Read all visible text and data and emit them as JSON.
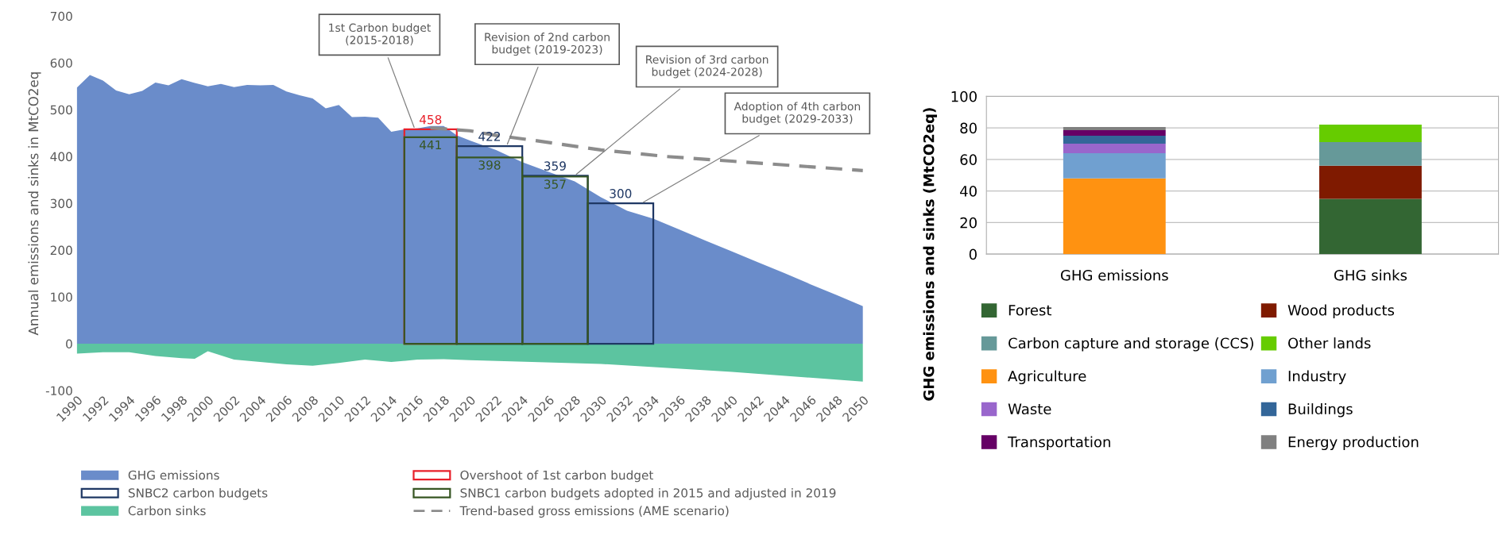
{
  "chart_data": [
    {
      "type": "area",
      "ylabel": "Annual emissions and sinks in MtCO2eq",
      "xlim": [
        1990,
        2050
      ],
      "ylim": [
        -100,
        700
      ],
      "xticks": [
        1990,
        1992,
        1994,
        1996,
        1998,
        2000,
        2002,
        2004,
        2006,
        2008,
        2010,
        2012,
        2014,
        2016,
        2018,
        2020,
        2022,
        2024,
        2026,
        2028,
        2030,
        2032,
        2034,
        2036,
        2038,
        2040,
        2042,
        2044,
        2046,
        2048,
        2050
      ],
      "yticks": [
        -100,
        0,
        100,
        200,
        300,
        400,
        500,
        600,
        700
      ],
      "grid": false,
      "legend": "bottom",
      "series": [
        {
          "name": "GHG emissions",
          "type": "area",
          "color": "#6a8cca",
          "x": [
            1990,
            1991,
            1992,
            1993,
            1994,
            1995,
            1996,
            1997,
            1998,
            1999,
            2000,
            2001,
            2002,
            2003,
            2004,
            2005,
            2006,
            2007,
            2008,
            2009,
            2010,
            2011,
            2012,
            2013,
            2014,
            2015,
            2016,
            2017,
            2018,
            2019,
            2020,
            2022,
            2024,
            2026,
            2028,
            2030,
            2032,
            2034,
            2036,
            2038,
            2040,
            2042,
            2044,
            2046,
            2048,
            2050
          ],
          "values": [
            547,
            574,
            562,
            541,
            533,
            540,
            558,
            552,
            565,
            557,
            550,
            555,
            548,
            553,
            552,
            553,
            539,
            531,
            524,
            503,
            510,
            484,
            485,
            483,
            453,
            458,
            460,
            465,
            465,
            445,
            434,
            414,
            388,
            367,
            347,
            313,
            284,
            267,
            244,
            220,
            197,
            174,
            151,
            127,
            104,
            80
          ]
        },
        {
          "name": "SNBC2 carbon budgets",
          "type": "histogram",
          "color": "#1f3864",
          "bins": [
            2019,
            2024,
            2029,
            2034
          ],
          "values": [
            422,
            359,
            300
          ],
          "value_labels": [
            "422",
            "359",
            "300"
          ]
        },
        {
          "name": "Carbon sinks",
          "type": "area",
          "color": "#5cc4a0",
          "x": [
            1990,
            1992,
            1994,
            1996,
            1998,
            1999,
            2000,
            2002,
            2004,
            2006,
            2008,
            2010,
            2012,
            2014,
            2016,
            2018,
            2020,
            2030,
            2040,
            2050
          ],
          "values": [
            -21,
            -18,
            -18,
            -26,
            -31,
            -32,
            -16,
            -34,
            -39,
            -44,
            -47,
            -41,
            -34,
            -39,
            -34,
            -33,
            -35,
            -43,
            -60,
            -81
          ]
        },
        {
          "name": "Overshoot of 1st carbon budget",
          "type": "histogram",
          "color": "#e8202a",
          "bins": [
            2015,
            2019
          ],
          "values": [
            458
          ],
          "value_labels": [
            "458"
          ]
        },
        {
          "name": "SNBC1 carbon budgets adopted in 2015 and adjusted in 2019",
          "type": "histogram",
          "color": "#375623",
          "bins": [
            2015,
            2019,
            2024,
            2029
          ],
          "values": [
            441,
            398,
            357
          ],
          "value_labels": [
            "441",
            "398",
            "357"
          ]
        },
        {
          "name": "Trend-based gross emissions (AME scenario)",
          "type": "line",
          "color": "#8c8c8c",
          "line_style": "dashed",
          "x": [
            2017,
            2020,
            2022,
            2025,
            2030,
            2035,
            2040,
            2045,
            2050
          ],
          "values": [
            461,
            455,
            445,
            434,
            414,
            400,
            390,
            380,
            370
          ]
        }
      ],
      "annotations": [
        {
          "text": "1st Carbon budget\n(2015-2018)",
          "x": 2015.8,
          "y": 458
        },
        {
          "text": "Revision of 2nd carbon\nbudget (2019-2023)",
          "x": 2022.8,
          "y": 422
        },
        {
          "text": "Revision of 3rd carbon\nbudget (2024-2028)",
          "x": 2028,
          "y": 359
        },
        {
          "text": "Adoption of 4th carbon\nbudget (2029-2033)",
          "x": 2033.1,
          "y": 300
        }
      ]
    },
    {
      "type": "bar",
      "stacked": true,
      "categories": [
        "GHG emissions",
        "GHG sinks"
      ],
      "ylabel": "GHG emissions and sinks (MtCO2eq)",
      "ylim": [
        0,
        100
      ],
      "yticks": [
        0,
        20,
        40,
        60,
        80,
        100
      ],
      "grid": "y",
      "legend": "bottom",
      "series": [
        {
          "name": "Forest",
          "color": "#336633",
          "values": [
            null,
            35
          ]
        },
        {
          "name": "Wood products",
          "color": "#7f1a00",
          "values": [
            null,
            21
          ]
        },
        {
          "name": "Carbon capture and storage (CCS)",
          "color": "#669999",
          "values": [
            null,
            15
          ]
        },
        {
          "name": "Other lands",
          "color": "#66cc00",
          "values": [
            null,
            11
          ]
        },
        {
          "name": "Agriculture",
          "color": "#ff9211",
          "values": [
            48,
            null
          ]
        },
        {
          "name": "Industry",
          "color": "#70a0d0",
          "values": [
            16,
            null
          ]
        },
        {
          "name": "Waste",
          "color": "#9966cc",
          "values": [
            6,
            null
          ]
        },
        {
          "name": "Buildings",
          "color": "#336699",
          "values": [
            5,
            null
          ]
        },
        {
          "name": "Transportation",
          "color": "#660066",
          "values": [
            3.5,
            null
          ]
        },
        {
          "name": "Energy production",
          "color": "#808080",
          "values": [
            2,
            null
          ]
        }
      ]
    }
  ]
}
